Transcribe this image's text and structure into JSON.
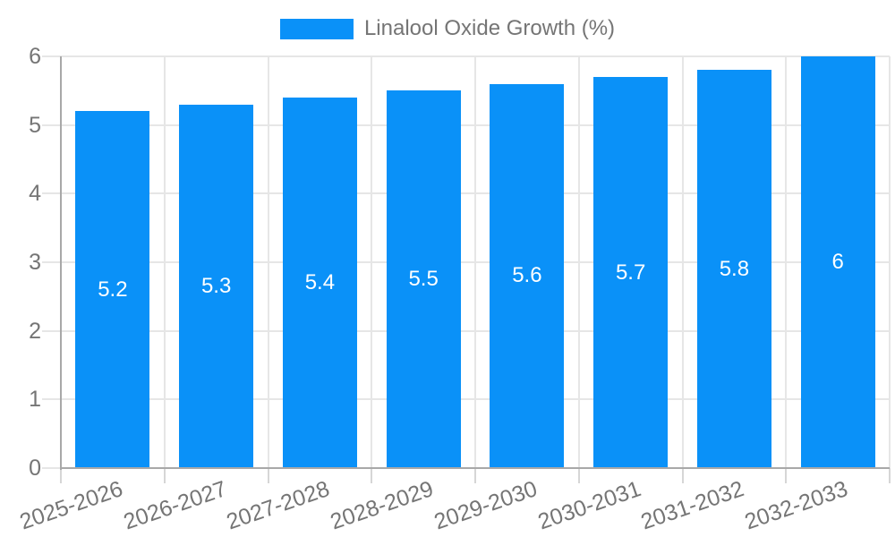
{
  "colors": {
    "bar": "#0A91F8",
    "bar_label": "#ffffff",
    "gridline": "#e6e6e6",
    "tick": "#d6d6d6",
    "axis_line": "#a8a8a8",
    "text": "#757575",
    "background": "#ffffff"
  },
  "chart_data": {
    "type": "bar",
    "title": "",
    "legend_label": "Linalool Oxide Growth (%)",
    "legend_position": "top",
    "categories": [
      "2025-2026",
      "2026-2027",
      "2027-2028",
      "2028-2029",
      "2029-2030",
      "2030-2031",
      "2031-2032",
      "2032-2033"
    ],
    "values": [
      5.2,
      5.3,
      5.4,
      5.5,
      5.6,
      5.7,
      5.8,
      6
    ],
    "value_labels": [
      "5.2",
      "5.3",
      "5.4",
      "5.5",
      "5.6",
      "5.7",
      "5.8",
      "6"
    ],
    "xlabel": "",
    "ylabel": "",
    "ylim": [
      0,
      6
    ],
    "yticks": [
      "0",
      "1",
      "2",
      "3",
      "4",
      "5",
      "6"
    ],
    "grid": true,
    "x_labels_rotated": true
  }
}
